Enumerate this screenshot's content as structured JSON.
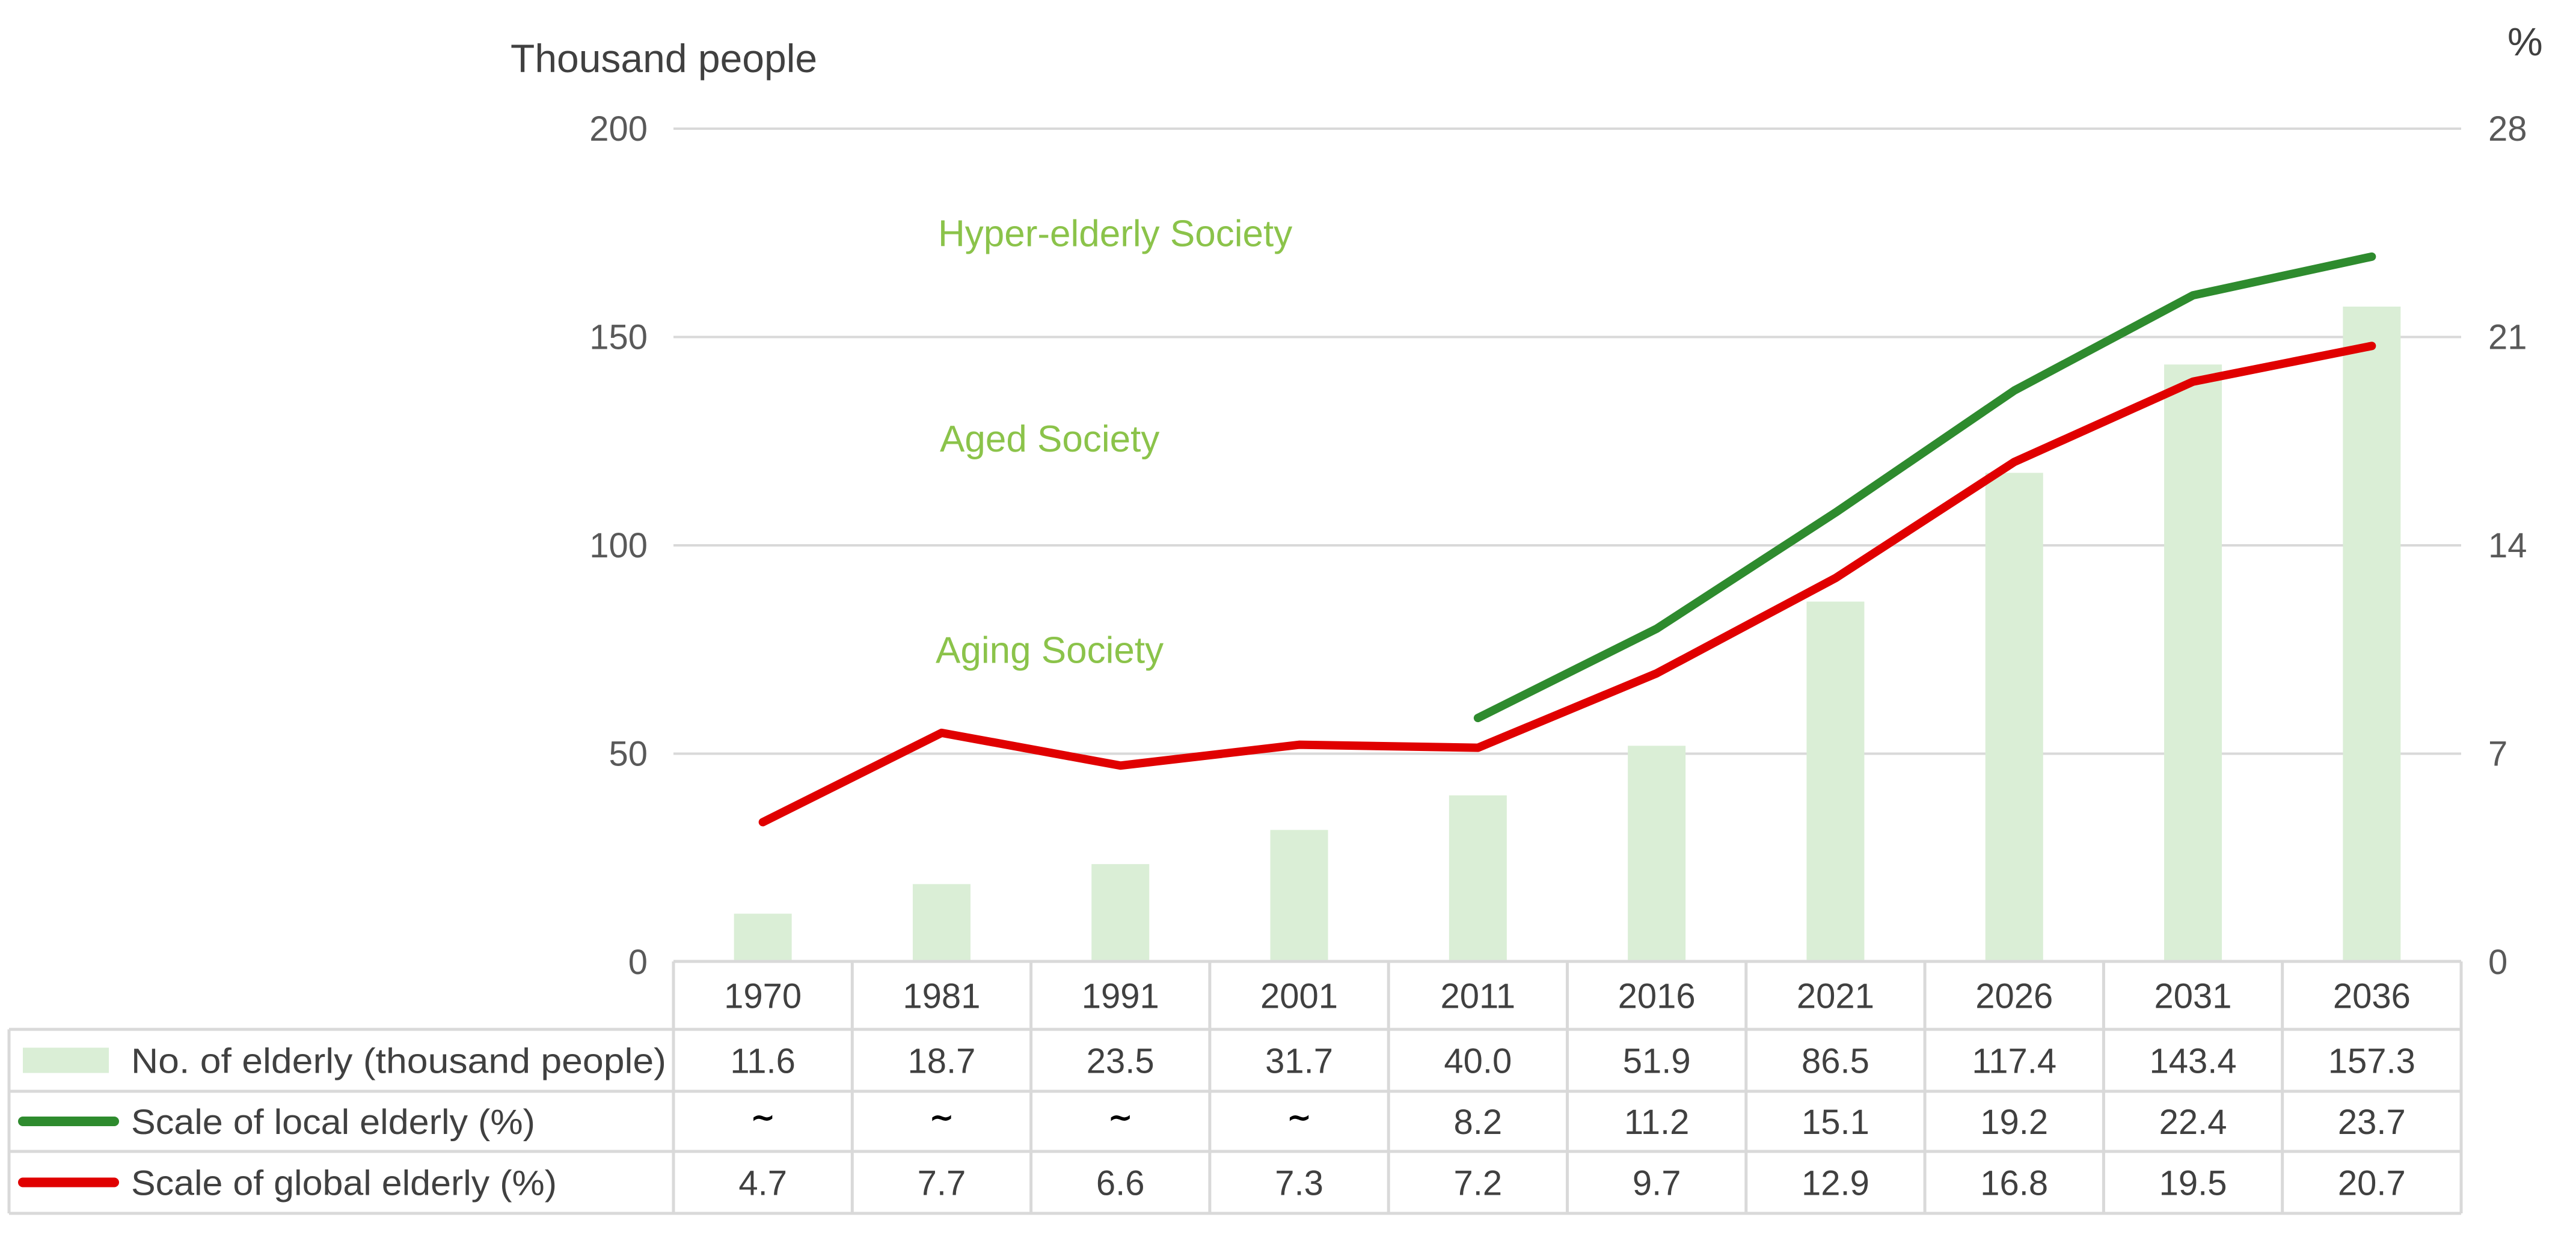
{
  "chart_data": {
    "type": "bar+line",
    "title": "",
    "categories": [
      "1970",
      "1981",
      "1991",
      "2001",
      "2011",
      "2016",
      "2021",
      "2026",
      "2031",
      "2036"
    ],
    "left_axis": {
      "label": "Thousand people",
      "range": [
        0,
        200
      ],
      "ticks": [
        0,
        50,
        100,
        150,
        200
      ]
    },
    "right_axis": {
      "label": "%",
      "range": [
        0,
        28
      ],
      "ticks": [
        0,
        7,
        14,
        21,
        28
      ]
    },
    "grid": true,
    "series": [
      {
        "name": "No. of elderly (thousand people)",
        "type": "bar",
        "axis": "left",
        "color": "#DAEED6",
        "values": [
          11.6,
          18.7,
          23.5,
          31.7,
          40.0,
          51.9,
          86.5,
          117.4,
          143.4,
          157.3
        ],
        "display": [
          "11.6",
          "18.7",
          "23.5",
          "31.7",
          "40.0",
          "51.9",
          "86.5",
          "117.4",
          "143.4",
          "157.3"
        ]
      },
      {
        "name": "Scale of local elderly (%)",
        "type": "line",
        "axis": "right",
        "color": "#2E8B2E",
        "values": [
          null,
          null,
          null,
          null,
          8.2,
          11.2,
          15.1,
          19.2,
          22.4,
          23.7
        ],
        "display": [
          "~",
          "~",
          "~",
          "~",
          "8.2",
          "11.2",
          "15.1",
          "19.2",
          "22.4",
          "23.7"
        ]
      },
      {
        "name": "Scale of global elderly (%)",
        "type": "line",
        "axis": "right",
        "color": "#E00000",
        "values": [
          4.7,
          7.7,
          6.6,
          7.3,
          7.2,
          9.7,
          12.9,
          16.8,
          19.5,
          20.7
        ],
        "display": [
          "4.7",
          "7.7",
          "6.6",
          "7.3",
          "7.2",
          "9.7",
          "12.9",
          "16.8",
          "19.5",
          "20.7"
        ]
      }
    ],
    "annotations": [
      {
        "text": "Hyper-elderly Society",
        "near_value_pct": 24.5
      },
      {
        "text": "Aged Society",
        "near_value_pct": 17.6
      },
      {
        "text": "Aging Society",
        "near_value_pct": 10.5
      }
    ],
    "annotation_color": "#8BC34A",
    "legend_placement": "data-table-bottom"
  }
}
